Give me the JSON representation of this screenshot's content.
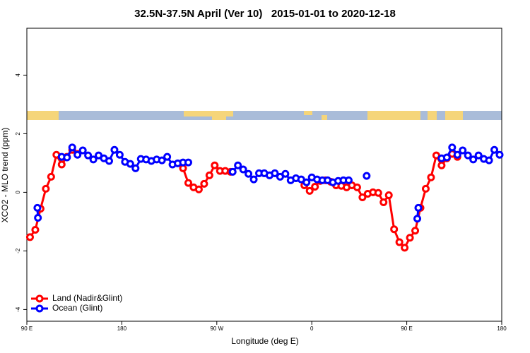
{
  "chart_data": {
    "type": "line",
    "title": "32.5N-37.5N April (Ver 10)   2015-01-01 to 2020-12-18",
    "x_label": "Longitude (deg E)",
    "y_label": "XCO2 - MLO trend (ppm)",
    "xlim": [
      90,
      540
    ],
    "ylim": [
      -4.4,
      5.6
    ],
    "xticks": [
      {
        "value": 90,
        "label": "90 E"
      },
      180,
      {
        "value": 270,
        "label": "90 W"
      },
      {
        "value": 360,
        "label": "0"
      },
      {
        "value": 450,
        "label": "90 E"
      },
      {
        "value": 540,
        "label": "180"
      }
    ],
    "yticks": [
      -4,
      -2,
      0,
      2,
      4
    ],
    "legend": "bottom-left",
    "series": [
      {
        "name": "Land (Nadir&Glint)",
        "color": "#ff0000",
        "x": [
          93,
          98,
          103,
          108,
          113,
          118,
          123,
          128,
          133,
          138,
          null,
          238,
          243,
          248,
          253,
          258,
          263,
          268,
          273,
          278,
          283,
          null,
          353,
          358,
          363,
          368,
          373,
          378,
          383,
          388,
          393,
          398,
          403,
          408,
          413,
          418,
          423,
          428,
          433,
          438,
          443,
          448,
          453,
          458,
          463,
          468,
          473,
          478,
          483,
          488,
          493,
          498
        ],
        "values": [
          -1.53,
          -1.28,
          -0.56,
          0.12,
          0.53,
          1.28,
          0.95,
          1.21,
          1.45,
          1.31,
          null,
          0.82,
          0.32,
          0.17,
          0.1,
          0.29,
          0.58,
          0.92,
          0.73,
          0.73,
          0.7,
          null,
          0.24,
          0.05,
          0.19,
          0.39,
          0.41,
          0.36,
          0.24,
          0.22,
          0.17,
          0.24,
          0.17,
          -0.17,
          -0.05,
          0,
          -0.02,
          -0.34,
          -0.1,
          -1.26,
          -1.7,
          -1.89,
          -1.55,
          -1.31,
          -0.53,
          0.12,
          0.51,
          1.26,
          0.92,
          1.16,
          1.31,
          1.21
        ]
      },
      {
        "name": "Ocean (Glint)",
        "color": "#0000ff",
        "x": [
          100,
          100.5,
          null,
          123,
          128,
          133,
          138,
          143,
          148,
          153,
          158,
          163,
          168,
          173,
          178,
          183,
          188,
          193,
          198,
          203,
          208,
          213,
          218,
          223,
          228,
          233,
          238,
          243,
          null,
          285,
          290,
          295,
          300,
          305,
          310,
          315,
          320,
          325,
          330,
          335,
          340,
          345,
          350,
          355,
          360,
          365,
          370,
          375,
          380,
          385,
          390,
          395,
          null,
          412,
          null,
          460,
          461,
          null,
          483,
          488,
          493,
          498,
          503,
          508,
          513,
          518,
          523,
          528,
          533,
          538
        ],
        "values": [
          -0.53,
          -0.87,
          null,
          1.21,
          1.19,
          1.53,
          1.28,
          1.43,
          1.26,
          1.12,
          1.26,
          1.16,
          1.07,
          1.45,
          1.28,
          1.04,
          0.97,
          0.82,
          1.14,
          1.12,
          1.07,
          1.12,
          1.09,
          1.21,
          0.95,
          0.99,
          1.02,
          1.02,
          null,
          0.7,
          0.92,
          0.78,
          0.63,
          0.44,
          0.65,
          0.65,
          0.58,
          0.65,
          0.53,
          0.63,
          0.41,
          0.48,
          0.44,
          0.34,
          0.51,
          0.44,
          0.41,
          0.41,
          0.34,
          0.39,
          0.41,
          0.41,
          null,
          0.56,
          null,
          -0.9,
          -0.53,
          null,
          1.16,
          1.19,
          1.53,
          1.28,
          1.43,
          1.26,
          1.12,
          1.26,
          1.14,
          1.09,
          1.45,
          1.28
        ]
      }
    ]
  }
}
